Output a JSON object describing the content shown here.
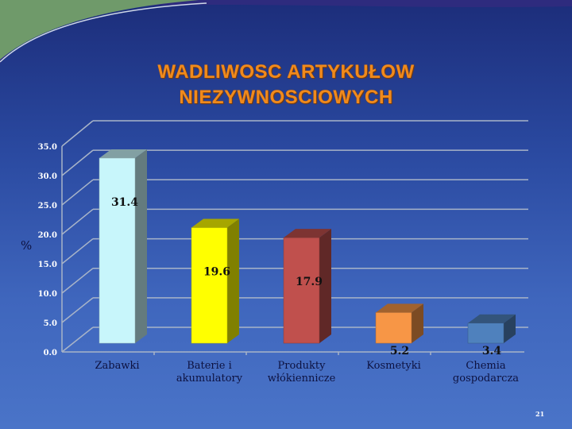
{
  "title_line1": "WADLIWOSC ARTYKUŁOW",
  "title_line2": "NIEZYWNOSCIOWYCH",
  "page_number": "21",
  "chart_data": {
    "type": "bar",
    "style": "3d-column",
    "title": "WADLIWOSC ARTYKUŁOW NIEZYWNOSCIOWYCH",
    "ylabel": "%",
    "xlabel": "",
    "ylim": [
      0,
      35
    ],
    "yticks": [
      "0.0",
      "5.0",
      "10.0",
      "15.0",
      "20.0",
      "25.0",
      "30.0",
      "35.0"
    ],
    "grid": true,
    "categories": [
      "Zabawki",
      "Baterie i akumulatory",
      "Produkty włókiennicze",
      "Kosmetyki",
      "Chemia gospodarcza"
    ],
    "category_lines": [
      [
        "Zabawki"
      ],
      [
        "Baterie i",
        "akumulatory"
      ],
      [
        "Produkty",
        "włókiennicze"
      ],
      [
        "Kosmetyki"
      ],
      [
        "Chemia",
        "gospodarcza"
      ]
    ],
    "values": [
      31.4,
      19.6,
      17.9,
      5.2,
      3.4
    ],
    "data_labels": [
      "31.4",
      "19.6",
      "17.9",
      "5.2",
      "3.4"
    ],
    "colors": [
      "#c8f6fb",
      "#ffff00",
      "#c0504d",
      "#f79646",
      "#4f81bd"
    ]
  }
}
